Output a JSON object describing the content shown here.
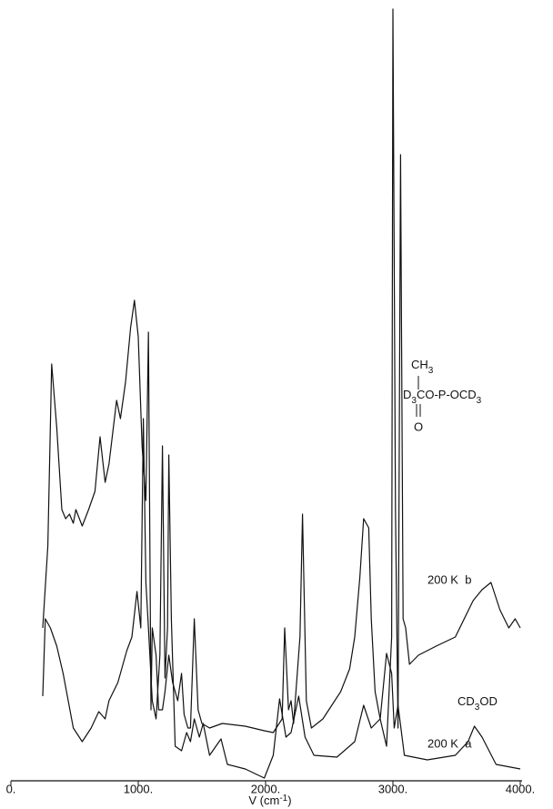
{
  "chart_data": {
    "type": "line",
    "xlabel": [
      "V (cm",
      "-1",
      ")"
    ],
    "xlim": [
      0,
      4000
    ],
    "xticks": [
      {
        "value": 0,
        "label": "0."
      },
      {
        "value": 1000,
        "label": "1000."
      },
      {
        "value": 2000,
        "label": "2000."
      },
      {
        "value": 3000,
        "label": "3000."
      },
      {
        "value": 4000,
        "label": "4000."
      }
    ],
    "ylim": [
      0,
      850
    ],
    "grid": false,
    "series": [
      {
        "name": "b",
        "color": "#111111",
        "x": [
          250,
          290,
          320,
          360,
          400,
          430,
          460,
          490,
          510,
          560,
          610,
          660,
          700,
          740,
          770,
          830,
          860,
          900,
          940,
          970,
          1000,
          1030,
          1060,
          1080,
          1100,
          1110,
          1130,
          1140,
          1160,
          1190,
          1210,
          1240,
          1270,
          1310,
          1340,
          1360,
          1390,
          1410,
          1440,
          1470,
          1500,
          1560,
          1660,
          1840,
          1990,
          2060,
          2130,
          2150,
          2180,
          2200,
          2220,
          2270,
          2290,
          2320,
          2360,
          2450,
          2520,
          2590,
          2660,
          2700,
          2740,
          2770,
          2810,
          2830,
          2860,
          2900,
          2950,
          2990,
          3000,
          3020,
          3040,
          3060,
          3080,
          3100,
          3130,
          3200,
          3340,
          3490,
          3630,
          3700,
          3770,
          3840,
          3910,
          3960,
          4000
        ],
        "values": [
          168,
          258,
          458,
          388,
          298,
          288,
          293,
          283,
          298,
          280,
          298,
          318,
          378,
          328,
          348,
          418,
          398,
          438,
          498,
          528,
          488,
          368,
          308,
          493,
          78,
          168,
          148,
          138,
          78,
          78,
          98,
          138,
          108,
          88,
          118,
          73,
          58,
          58,
          178,
          78,
          63,
          58,
          63,
          60,
          55,
          53,
          68,
          168,
          78,
          88,
          63,
          158,
          293,
          88,
          58,
          68,
          83,
          98,
          123,
          158,
          223,
          288,
          278,
          178,
          98,
          68,
          38,
          158,
          848,
          298,
          58,
          688,
          178,
          168,
          128,
          138,
          148,
          158,
          198,
          210,
          218,
          188,
          168,
          178,
          168
        ]
      },
      {
        "name": "a",
        "color": "#111111",
        "x": [
          250,
          270,
          310,
          360,
          410,
          490,
          560,
          630,
          690,
          740,
          770,
          840,
          910,
          950,
          990,
          1020,
          1040,
          1060,
          1080,
          1110,
          1140,
          1170,
          1190,
          1210,
          1230,
          1240,
          1260,
          1290,
          1340,
          1380,
          1410,
          1440,
          1480,
          1510,
          1560,
          1650,
          1700,
          1840,
          1990,
          2060,
          2110,
          2160,
          2200,
          2260,
          2310,
          2380,
          2560,
          2700,
          2770,
          2830,
          2900,
          2950,
          2990,
          3010,
          3040,
          3090,
          3270,
          3490,
          3590,
          3640,
          3700,
          3810,
          4000
        ],
        "values": [
          93,
          178,
          168,
          148,
          118,
          58,
          43,
          58,
          76,
          68,
          88,
          108,
          143,
          158,
          208,
          168,
          398,
          218,
          168,
          88,
          68,
          138,
          368,
          113,
          168,
          358,
          178,
          38,
          33,
          53,
          43,
          68,
          48,
          63,
          28,
          46,
          18,
          13,
          3,
          28,
          90,
          48,
          53,
          93,
          48,
          28,
          26,
          43,
          83,
          58,
          68,
          140,
          118,
          58,
          83,
          28,
          23,
          28,
          43,
          60,
          48,
          18,
          13
        ]
      }
    ],
    "annotations": {
      "molecule": {
        "top": [
          "CH",
          "3"
        ],
        "middle": [
          "D",
          "3",
          "CO-P-OCD",
          "3"
        ],
        "bottom": "O"
      },
      "label_b": "200 K  b",
      "compound_a": [
        "CD",
        "3",
        "OD"
      ],
      "label_a": "200 K  a"
    }
  }
}
